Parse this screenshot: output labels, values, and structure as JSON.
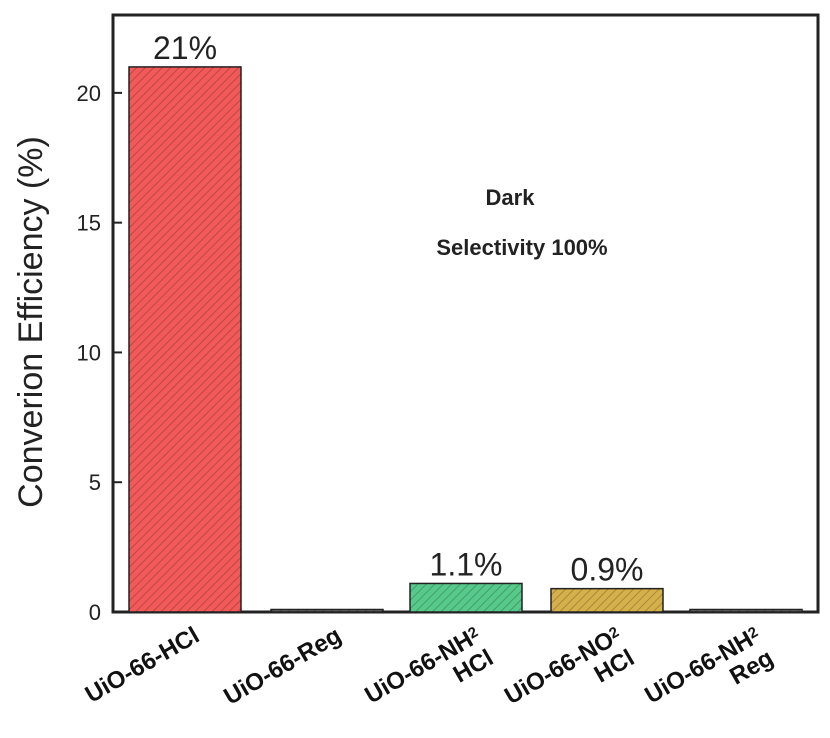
{
  "chart_data": {
    "type": "bar",
    "ylabel": "Converion Efficiency (%)",
    "xlabel": "",
    "ylim": [
      0,
      23
    ],
    "yticks": [
      0,
      5,
      10,
      15,
      20
    ],
    "grid": false,
    "categories": [
      {
        "line1": "UiO-66-HCl",
        "sub": "",
        "line2": ""
      },
      {
        "line1": "UiO-66-Reg",
        "sub": "",
        "line2": ""
      },
      {
        "line1": "UiO-66-NH",
        "sub": "2",
        "line2": "HCl"
      },
      {
        "line1": "UiO-66-NO",
        "sub": "2",
        "line2": "HCl"
      },
      {
        "line1": "UiO-66-NH",
        "sub": "2",
        "line2": "Reg"
      }
    ],
    "values": [
      21,
      0,
      1.1,
      0.9,
      0
    ],
    "data_labels": [
      "21%",
      "",
      "1.1%",
      "0.9%",
      ""
    ],
    "colors": [
      "#f25a5a",
      "#6b6b6b",
      "#57c98a",
      "#d6b04a",
      "#6b6b6b"
    ],
    "annotations": [
      "Dark",
      "Selectivity 100%"
    ]
  }
}
